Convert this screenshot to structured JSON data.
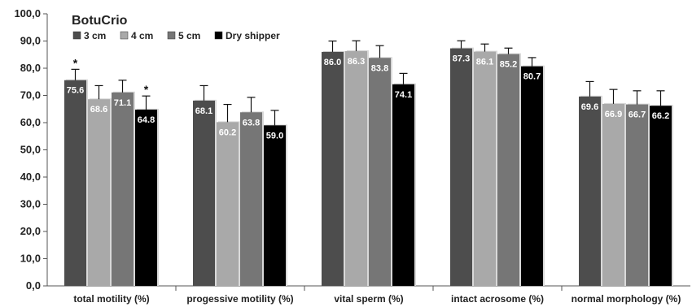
{
  "chart_data": {
    "type": "bar",
    "title": "BotuCrio",
    "categories": [
      "total motility (%)",
      "progessive motility (%)",
      "vital sperm (%)",
      "intact acrosome (%)",
      "normal morphology (%)"
    ],
    "series": [
      {
        "name": "3 cm",
        "color": "#4d4d4d",
        "values": [
          75.6,
          68.1,
          86.0,
          87.3,
          69.6
        ],
        "errors": [
          4.0,
          5.5,
          4.0,
          2.8,
          5.5
        ],
        "labels": [
          "75.6",
          "68.1",
          "86.0",
          "87.3",
          "69.6"
        ],
        "marks": [
          "*",
          "",
          "",
          "",
          ""
        ]
      },
      {
        "name": "4 cm",
        "color": "#a9a9a9",
        "values": [
          68.6,
          60.2,
          86.3,
          86.1,
          66.9
        ],
        "errors": [
          5.0,
          6.5,
          3.8,
          2.8,
          5.3
        ],
        "labels": [
          "68.6",
          "60.2",
          "86.3",
          "86.1",
          "66.9"
        ],
        "marks": [
          "",
          "",
          "",
          "",
          ""
        ]
      },
      {
        "name": "5 cm",
        "color": "#767676",
        "values": [
          71.1,
          63.8,
          83.8,
          85.2,
          66.7
        ],
        "errors": [
          4.5,
          5.5,
          4.5,
          2.2,
          5.0
        ],
        "labels": [
          "71.1",
          "63.8",
          "83.8",
          "85.2",
          "66.7"
        ],
        "marks": [
          "",
          "",
          "",
          "",
          ""
        ]
      },
      {
        "name": "Dry shipper",
        "color": "#000000",
        "values": [
          64.8,
          59.0,
          74.1,
          80.7,
          66.2
        ],
        "errors": [
          5.0,
          5.5,
          4.0,
          3.2,
          5.5
        ],
        "labels": [
          "64.8",
          "59.0",
          "74.1",
          "80.7",
          "66.2"
        ],
        "marks": [
          "*",
          "",
          "",
          "",
          ""
        ]
      }
    ],
    "ylim": [
      0,
      100
    ],
    "yticks": [
      0,
      10,
      20,
      30,
      40,
      50,
      60,
      70,
      80,
      90,
      100
    ],
    "ytick_labels": [
      "0,0",
      "10,0",
      "20,0",
      "30,0",
      "40,0",
      "50,0",
      "60,0",
      "70,0",
      "80,0",
      "90,0",
      "100,0"
    ],
    "xlabel": "",
    "ylabel": "",
    "grid": false,
    "legend_position": "top-left"
  }
}
